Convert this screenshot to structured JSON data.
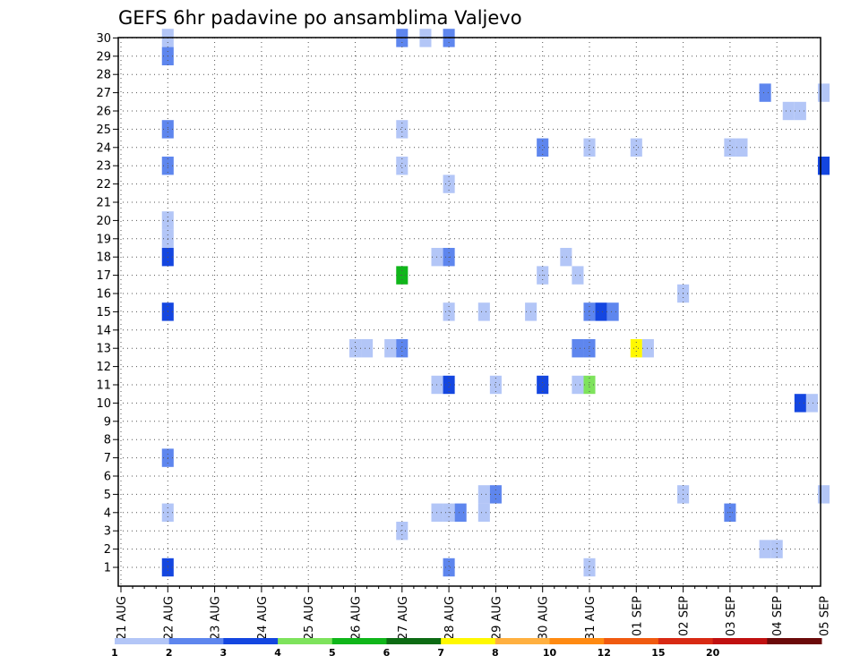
{
  "chart_data": {
    "type": "heatmap",
    "title": "GEFS 6hr padavine po ansamblima Valjevo",
    "xlabel": "",
    "ylabel": "",
    "x_tick_labels": [
      "21 AUG",
      "22 AUG",
      "23 AUG",
      "24 AUG",
      "25 AUG",
      "26 AUG",
      "27 AUG",
      "28 AUG",
      "29 AUG",
      "30 AUG",
      "31 AUG",
      "01 SEP",
      "02 SEP",
      "03 SEP",
      "04 SEP",
      "05 SEP"
    ],
    "x_step": "6hr",
    "y_tick_labels": [
      1,
      2,
      3,
      4,
      5,
      6,
      7,
      8,
      9,
      10,
      11,
      12,
      13,
      14,
      15,
      16,
      17,
      18,
      19,
      20,
      21,
      22,
      23,
      24,
      25,
      26,
      27,
      28,
      29,
      30
    ],
    "grid": true,
    "legend": {
      "position": "bottom",
      "thresholds": [
        1,
        2,
        3,
        4,
        5,
        6,
        7,
        8,
        10,
        12,
        15,
        20
      ],
      "colors": [
        "#b3c6f7",
        "#5e86ee",
        "#1446e0",
        "#7ee35c",
        "#10b61a",
        "#0d6b14",
        "#fff800",
        "#ffb040",
        "#ff8a12",
        "#f05a10",
        "#d82a14",
        "#c01010",
        "#6b0a0a"
      ]
    },
    "cells": [
      {
        "member": 30,
        "x": "22 AUG",
        "value": 1.5
      },
      {
        "member": 29,
        "x": "22 AUG",
        "value": 2.5
      },
      {
        "member": 25,
        "x": "22 AUG",
        "value": 2.5
      },
      {
        "member": 23,
        "x": "22 AUG",
        "value": 2.5
      },
      {
        "member": 20,
        "x": "22 AUG",
        "value": 1.5
      },
      {
        "member": 19,
        "x": "22 AUG",
        "value": 1.5
      },
      {
        "member": 18,
        "x": "22 AUG",
        "value": 3.5
      },
      {
        "member": 15,
        "x": "22 AUG",
        "value": 3.5
      },
      {
        "member": 7,
        "x": "22 AUG",
        "value": 2.5
      },
      {
        "member": 4,
        "x": "22 AUG",
        "value": 1.5
      },
      {
        "member": 1,
        "x": "22 AUG",
        "value": 3.5
      },
      {
        "member": 30,
        "x": "27 AUG",
        "value": 2.5
      },
      {
        "member": 30,
        "x": "27 AUG 12z",
        "value": 1.5
      },
      {
        "member": 30,
        "x": "28 AUG",
        "value": 2.5
      },
      {
        "member": 25,
        "x": "27 AUG",
        "value": 1.5
      },
      {
        "member": 23,
        "x": "27 AUG",
        "value": 1.5
      },
      {
        "member": 22,
        "x": "28 AUG",
        "value": 1.5
      },
      {
        "member": 17,
        "x": "27 AUG",
        "value": 5.5
      },
      {
        "member": 18,
        "x": "27 AUG 18z",
        "value": 1.5
      },
      {
        "member": 18,
        "x": "28 AUG",
        "value": 2.5
      },
      {
        "member": 15,
        "x": "28 AUG",
        "value": 1.5
      },
      {
        "member": 15,
        "x": "28 AUG 18z",
        "value": 1.5
      },
      {
        "member": 13,
        "x": "26 AUG",
        "value": 1.5
      },
      {
        "member": 13,
        "x": "26 AUG 06z",
        "value": 1.5
      },
      {
        "member": 13,
        "x": "26 AUG 18z",
        "value": 1.5
      },
      {
        "member": 13,
        "x": "27 AUG",
        "value": 2.5
      },
      {
        "member": 11,
        "x": "27 AUG 18z",
        "value": 1.5
      },
      {
        "member": 11,
        "x": "28 AUG",
        "value": 3.5
      },
      {
        "member": 11,
        "x": "29 AUG",
        "value": 1.5
      },
      {
        "member": 11,
        "x": "30 AUG",
        "value": 3.5
      },
      {
        "member": 11,
        "x": "30 AUG 18z",
        "value": 1.5
      },
      {
        "member": 11,
        "x": "31 AUG",
        "value": 4.5
      },
      {
        "member": 4,
        "x": "27 AUG 18z",
        "value": 1.5
      },
      {
        "member": 4,
        "x": "28 AUG",
        "value": 1.5
      },
      {
        "member": 4,
        "x": "28 AUG 06z",
        "value": 2.5
      },
      {
        "member": 4,
        "x": "28 AUG 18z",
        "value": 1.5
      },
      {
        "member": 5,
        "x": "28 AUG 18z",
        "value": 1.5
      },
      {
        "member": 5,
        "x": "29 AUG",
        "value": 2.5
      },
      {
        "member": 3,
        "x": "27 AUG",
        "value": 1.5
      },
      {
        "member": 1,
        "x": "28 AUG",
        "value": 2.5
      },
      {
        "member": 24,
        "x": "30 AUG",
        "value": 2.5
      },
      {
        "member": 24,
        "x": "31 AUG",
        "value": 1.5
      },
      {
        "member": 24,
        "x": "01 SEP",
        "value": 1.5
      },
      {
        "member": 24,
        "x": "03 SEP",
        "value": 1.5
      },
      {
        "member": 24,
        "x": "03 SEP 06z",
        "value": 1.5
      },
      {
        "member": 18,
        "x": "30 AUG 12z",
        "value": 1.5
      },
      {
        "member": 17,
        "x": "30 AUG",
        "value": 1.5
      },
      {
        "member": 17,
        "x": "30 AUG 18z",
        "value": 1.5
      },
      {
        "member": 16,
        "x": "02 SEP",
        "value": 1.5
      },
      {
        "member": 15,
        "x": "29 AUG 18z",
        "value": 1.5
      },
      {
        "member": 15,
        "x": "31 AUG",
        "value": 2.5
      },
      {
        "member": 15,
        "x": "31 AUG 06z",
        "value": 3.5
      },
      {
        "member": 15,
        "x": "31 AUG 12z",
        "value": 2.5
      },
      {
        "member": 13,
        "x": "30 AUG 18z",
        "value": 2.5
      },
      {
        "member": 13,
        "x": "31 AUG",
        "value": 2.5
      },
      {
        "member": 13,
        "x": "01 SEP",
        "value": 7.5
      },
      {
        "member": 13,
        "x": "01 SEP 06z",
        "value": 1.5
      },
      {
        "member": 5,
        "x": "02 SEP",
        "value": 1.5
      },
      {
        "member": 4,
        "x": "03 SEP",
        "value": 2.5
      },
      {
        "member": 1,
        "x": "31 AUG",
        "value": 1.5
      },
      {
        "member": 27,
        "x": "03 SEP 18z",
        "value": 2.5
      },
      {
        "member": 27,
        "x": "05 SEP",
        "value": 1.5
      },
      {
        "member": 26,
        "x": "04 SEP 06z",
        "value": 1.5
      },
      {
        "member": 26,
        "x": "04 SEP 12z",
        "value": 1.5
      },
      {
        "member": 23,
        "x": "05 SEP",
        "value": 3.5
      },
      {
        "member": 10,
        "x": "04 SEP 12z",
        "value": 3.5
      },
      {
        "member": 10,
        "x": "04 SEP 18z",
        "value": 1.5
      },
      {
        "member": 5,
        "x": "05 SEP",
        "value": 1.5
      },
      {
        "member": 2,
        "x": "03 SEP 18z",
        "value": 1.5
      },
      {
        "member": 2,
        "x": "04 SEP",
        "value": 1.5
      }
    ]
  }
}
